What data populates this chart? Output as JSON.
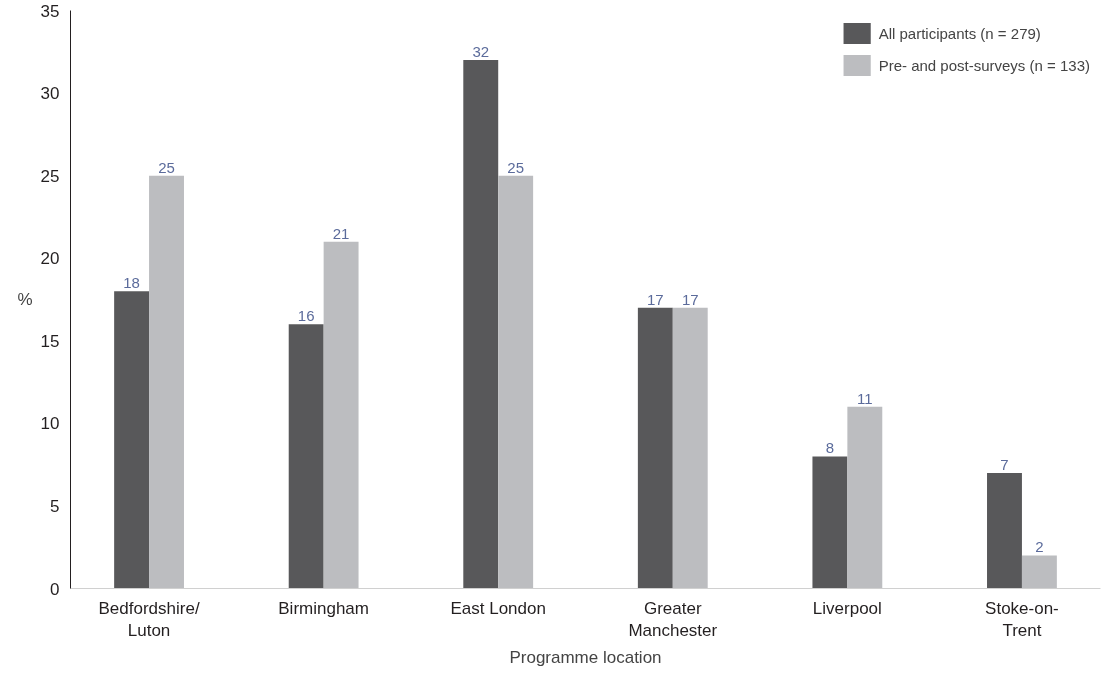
{
  "chart_data": {
    "type": "bar",
    "xlabel": "Programme location",
    "ylabel": "%",
    "categories": [
      "Bedfordshire/\nLuton",
      "Birmingham",
      "East London",
      "Greater\nManchester",
      "Liverpool",
      "Stoke-on-\nTrent"
    ],
    "series": [
      {
        "name": "All participants (n = 279)",
        "color": "#58585a",
        "values": [
          18,
          16,
          32,
          17,
          8,
          7
        ]
      },
      {
        "name": "Pre- and post-surveys (n = 133)",
        "color": "#bcbdc0",
        "values": [
          25,
          21,
          25,
          17,
          11,
          2
        ]
      }
    ],
    "ylim": [
      0,
      35
    ],
    "yticks": [
      0,
      5,
      10,
      15,
      20,
      25,
      30,
      35
    ],
    "grid": false,
    "legend": "top right",
    "data_labels": true
  }
}
